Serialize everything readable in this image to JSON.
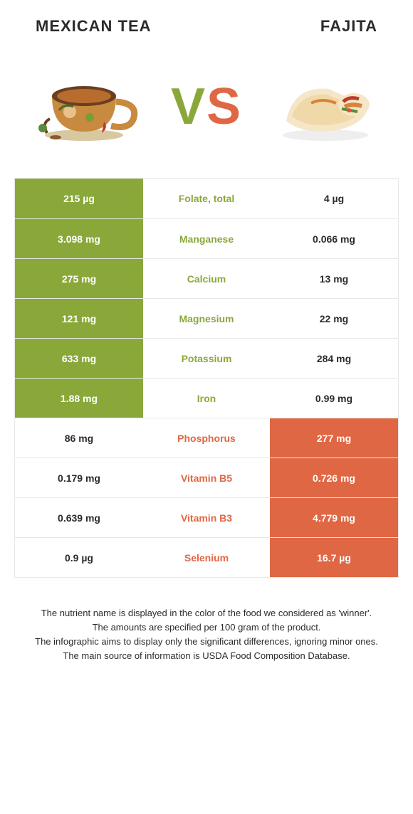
{
  "header": {
    "left_title": "Mexican Tea",
    "right_title": "Fajita",
    "vs_left": "V",
    "vs_right": "S"
  },
  "colors": {
    "green": "#8aa83a",
    "orange": "#e06744",
    "row_border": "#e8e8e8",
    "text": "#2b2b2b",
    "white": "#ffffff"
  },
  "table": {
    "rows": [
      {
        "left": "215 µg",
        "mid": "Folate, total",
        "right": "4 µg",
        "left_win": true,
        "right_win": false
      },
      {
        "left": "3.098 mg",
        "mid": "Manganese",
        "right": "0.066 mg",
        "left_win": true,
        "right_win": false
      },
      {
        "left": "275 mg",
        "mid": "Calcium",
        "right": "13 mg",
        "left_win": true,
        "right_win": false
      },
      {
        "left": "121 mg",
        "mid": "Magnesium",
        "right": "22 mg",
        "left_win": true,
        "right_win": false
      },
      {
        "left": "633 mg",
        "mid": "Potassium",
        "right": "284 mg",
        "left_win": true,
        "right_win": false
      },
      {
        "left": "1.88 mg",
        "mid": "Iron",
        "right": "0.99 mg",
        "left_win": true,
        "right_win": false
      },
      {
        "left": "86 mg",
        "mid": "Phosphorus",
        "right": "277 mg",
        "left_win": false,
        "right_win": true
      },
      {
        "left": "0.179 mg",
        "mid": "Vitamin B5",
        "right": "0.726 mg",
        "left_win": false,
        "right_win": true
      },
      {
        "left": "0.639 mg",
        "mid": "Vitamin B3",
        "right": "4.779 mg",
        "left_win": false,
        "right_win": true
      },
      {
        "left": "0.9 µg",
        "mid": "Selenium",
        "right": "16.7 µg",
        "left_win": false,
        "right_win": true
      }
    ]
  },
  "footnote": {
    "line1": "The nutrient name is displayed in the color of the food we considered as 'winner'.",
    "line2": "The amounts are specified per 100 gram of the product.",
    "line3": "The infographic aims to display only the significant differences, ignoring minor ones.",
    "line4": "The main source of information is USDA Food Composition Database."
  }
}
